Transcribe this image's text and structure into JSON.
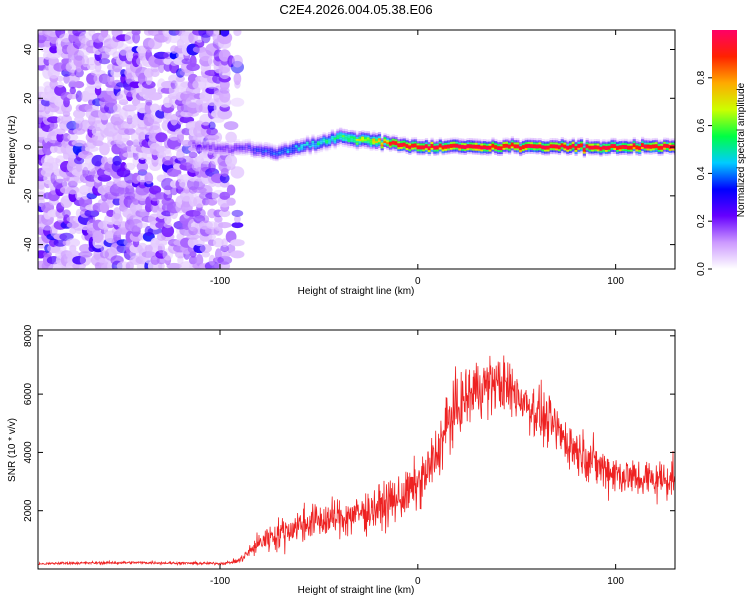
{
  "title": "C2E4.2026.004.05.38.E06",
  "chart_data": [
    {
      "type": "heatmap",
      "name": "spectrogram",
      "xlabel": "Height of straight line (km)",
      "ylabel": "Frequency (Hz)",
      "xlim": [
        -192,
        130
      ],
      "ylim": [
        -50,
        48
      ],
      "xticks": [
        -100,
        0,
        100
      ],
      "xtick_labels": [
        "-100",
        "0",
        "100"
      ],
      "yticks": [
        -40,
        -20,
        0,
        20,
        40
      ],
      "ytick_labels": [
        "-40",
        "-20",
        "0",
        "20",
        "40"
      ],
      "noise_region": {
        "x_from": -192,
        "x_to": -90,
        "amplitude_range": [
          0.05,
          0.35
        ]
      },
      "signal_ridge": {
        "x": [
          -114,
          -100,
          -90,
          -80,
          -70,
          -60,
          -50,
          -40,
          -30,
          -20,
          -10,
          0,
          20,
          40,
          60,
          80,
          100,
          115,
          130
        ],
        "freq": [
          1,
          -1,
          0,
          -2,
          -2,
          0,
          2,
          4,
          3,
          2,
          1,
          0,
          0,
          0,
          0,
          0,
          0,
          0,
          0
        ],
        "amplitude": [
          0.2,
          0.22,
          0.25,
          0.35,
          0.4,
          0.45,
          0.5,
          0.55,
          0.65,
          0.75,
          0.85,
          0.9,
          0.9,
          0.9,
          0.9,
          0.9,
          0.9,
          0.9,
          0.9
        ]
      },
      "colorbar": {
        "label": "Normalized spectral amplitude",
        "range": [
          0,
          1
        ],
        "ticks": [
          0.0,
          0.2,
          0.4,
          0.6,
          0.8
        ],
        "tick_labels": [
          "0.0",
          "0.2",
          "0.4",
          "0.6",
          "0.8"
        ],
        "colors": [
          "#ffffff",
          "#cc99ff",
          "#6600ff",
          "#0000ff",
          "#00ccff",
          "#00ff44",
          "#ccff00",
          "#ffaa00",
          "#ff2200",
          "#ff0066"
        ]
      }
    },
    {
      "type": "line",
      "name": "snr",
      "xlabel": "Height of straight line (km)",
      "ylabel": "SNR (10 * v/v)",
      "xlim": [
        -192,
        130
      ],
      "ylim": [
        0,
        8200
      ],
      "xticks": [
        -100,
        0,
        100
      ],
      "xtick_labels": [
        "-100",
        "0",
        "100"
      ],
      "yticks": [
        2000,
        4000,
        6000,
        8000
      ],
      "ytick_labels": [
        "2000",
        "4000",
        "6000",
        "8000"
      ],
      "color": "#ee2222",
      "x": [
        -192,
        -180,
        -160,
        -140,
        -120,
        -100,
        -95,
        -90,
        -85,
        -80,
        -75,
        -70,
        -65,
        -60,
        -55,
        -50,
        -45,
        -40,
        -35,
        -30,
        -25,
        -20,
        -15,
        -10,
        -5,
        0,
        5,
        10,
        15,
        20,
        25,
        30,
        35,
        40,
        45,
        50,
        55,
        60,
        65,
        70,
        75,
        80,
        85,
        90,
        95,
        100,
        105,
        110,
        115,
        120,
        125,
        130
      ],
      "y": [
        170,
        200,
        210,
        220,
        200,
        190,
        220,
        300,
        600,
        900,
        1100,
        1200,
        1350,
        1500,
        1600,
        1650,
        1700,
        1750,
        1800,
        1900,
        2000,
        2100,
        2250,
        2400,
        2600,
        2900,
        3300,
        4000,
        5000,
        5500,
        5900,
        6200,
        6300,
        6400,
        6200,
        6000,
        5700,
        5400,
        5100,
        4800,
        4400,
        4100,
        3900,
        3600,
        3400,
        3300,
        3200,
        3100,
        3100,
        3050,
        3100,
        3200
      ],
      "noise_amplitude": [
        60,
        60,
        60,
        60,
        60,
        60,
        80,
        150,
        300,
        500,
        650,
        700,
        750,
        800,
        800,
        800,
        850,
        850,
        900,
        900,
        950,
        950,
        1000,
        1000,
        1050,
        1100,
        1200,
        1300,
        1400,
        1400,
        1400,
        1400,
        1300,
        1300,
        1300,
        1250,
        1200,
        1200,
        1150,
        1100,
        1100,
        1050,
        1000,
        1000,
        1000,
        950,
        950,
        900,
        900,
        900,
        900,
        900
      ]
    }
  ]
}
